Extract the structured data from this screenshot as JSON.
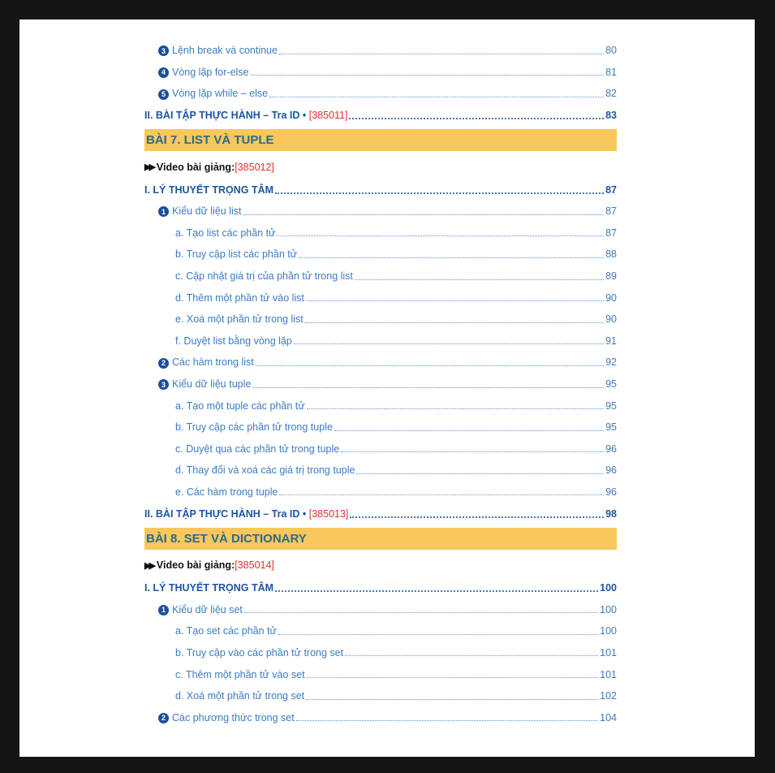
{
  "colors": {
    "band": "#f9c75c",
    "item": "#3b7bc4",
    "heading": "#1d55a5",
    "id": "#e0302f"
  },
  "toc": [
    {
      "type": "item",
      "num": "3",
      "text": "Lệnh break và continue",
      "page": "80"
    },
    {
      "type": "item",
      "num": "4",
      "text": "Vòng lặp for-else",
      "page": "81"
    },
    {
      "type": "item",
      "num": "5",
      "text": "Vòng lặp while – else",
      "page": "82"
    },
    {
      "type": "heading",
      "text": "II. BÀI TẬP THỰC HÀNH – Tra ID • ",
      "id": "[385011]",
      "page": "83"
    },
    {
      "type": "band",
      "text": "BÀI 7. LIST VÀ TUPLE"
    },
    {
      "type": "video",
      "text": "Video bài giảng: ",
      "id": "[385012]"
    },
    {
      "type": "heading",
      "text": "I. LÝ THUYẾT TRỌNG TÂM",
      "page": "87"
    },
    {
      "type": "item",
      "num": "1",
      "text": "Kiểu dữ liệu list",
      "page": "87"
    },
    {
      "type": "sub",
      "text": "a. Tạo list các phần tử",
      "page": "87"
    },
    {
      "type": "sub",
      "text": "b. Truy cập list các phần tử",
      "page": "88"
    },
    {
      "type": "sub",
      "text": "c. Cập nhật giá trị của phần tử trong list",
      "page": "89"
    },
    {
      "type": "sub",
      "text": "d. Thêm một phần tử vào list",
      "page": "90"
    },
    {
      "type": "sub",
      "text": "e. Xoá một phần tử trong list",
      "page": "90"
    },
    {
      "type": "sub",
      "text": "f. Duyệt list bằng vòng lặp",
      "page": "91"
    },
    {
      "type": "item",
      "num": "2",
      "text": "Các hàm trong list",
      "page": "92"
    },
    {
      "type": "item",
      "num": "3",
      "text": "Kiểu dữ liệu tuple",
      "page": "95"
    },
    {
      "type": "sub",
      "text": "a. Tạo một tuple các phần tử",
      "page": "95"
    },
    {
      "type": "sub",
      "text": "b. Truy cập các phần tử trong tuple",
      "page": "95"
    },
    {
      "type": "sub",
      "text": "c. Duyệt qua các phần tử trong tuple",
      "page": "96"
    },
    {
      "type": "sub",
      "text": "d. Thay đổi và xoá các giá trị trong tuple",
      "page": "96"
    },
    {
      "type": "sub",
      "text": "e. Các hàm trong tuple",
      "page": "96"
    },
    {
      "type": "heading",
      "text": "II. BÀI TẬP THỰC HÀNH – Tra ID • ",
      "id": "[385013]",
      "page": "98"
    },
    {
      "type": "band",
      "text": "BÀI 8. SET VÀ DICTIONARY"
    },
    {
      "type": "video",
      "text": "Video bài giảng: ",
      "id": "[385014]"
    },
    {
      "type": "heading",
      "text": "I. LÝ THUYẾT TRỌNG TÂM",
      "page": "100"
    },
    {
      "type": "item",
      "num": "1",
      "text": "Kiểu dữ liệu set",
      "page": "100"
    },
    {
      "type": "sub",
      "text": "a. Tạo set các phần tử",
      "page": "100"
    },
    {
      "type": "sub",
      "text": "b. Truy cập vào các phần tử trong set",
      "page": "101"
    },
    {
      "type": "sub",
      "text": "c. Thêm một phần tử vào set",
      "page": "101"
    },
    {
      "type": "sub",
      "text": "d. Xoá một phần tử trong set",
      "page": "102"
    },
    {
      "type": "item",
      "num": "2",
      "text": "Các phương thức trong set",
      "page": "104"
    }
  ]
}
